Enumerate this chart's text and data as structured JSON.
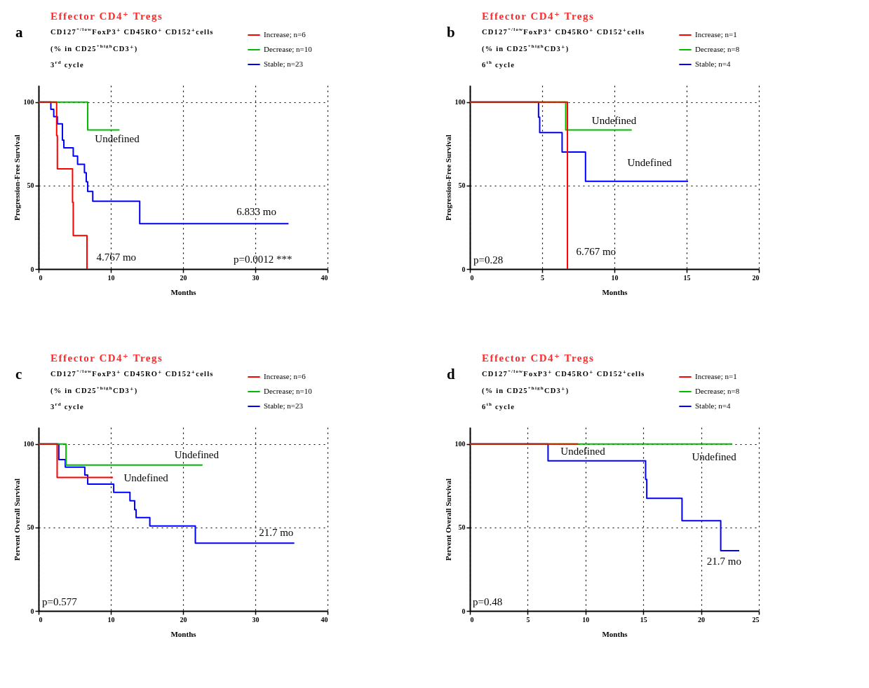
{
  "chart_data": [
    {
      "type": "step",
      "title": "Effector CD4⁺ Tregs",
      "subtitle": "CD127$^{+/low}$FoxP3⁺ CD45RO⁺ CD152⁺cells\n(% in CD25$^{+high}$CD3⁺)\n3$^{rd}$ cycle",
      "xlabel": "Months",
      "ylabel": "Progression-Free Survival",
      "xlim": [
        0,
        40
      ],
      "xticks": [
        0,
        10,
        20,
        30,
        40
      ],
      "ylim": [
        0,
        110
      ],
      "yticks": [
        0,
        50,
        100
      ],
      "grid": true,
      "legend": "top right",
      "series": [
        {
          "name": "Increase; n=6",
          "color": "#ff0000",
          "x": [
            0,
            2.5,
            2.6,
            4.7,
            4.8,
            6.7
          ],
          "values": [
            100,
            80,
            60,
            40,
            20,
            0
          ]
        },
        {
          "name": "Decrease; n=10",
          "color": "#00bb00",
          "x": [
            0,
            6.8,
            11.2
          ],
          "values": [
            100,
            83.3,
            83.3
          ]
        },
        {
          "name": "Stable; n=23",
          "color": "#0000ff",
          "x": [
            0,
            1.7,
            2.1,
            2.6,
            3.3,
            3.5,
            4.8,
            5.4,
            6.35,
            6.6,
            6.8,
            7.5,
            14.0,
            34.6
          ],
          "values": [
            100,
            95.7,
            91.3,
            87,
            77.3,
            72.6,
            67.7,
            62.8,
            57.7,
            52.3,
            46.5,
            40.6,
            27.2,
            27.2
          ]
        }
      ],
      "annotations": [
        "a",
        "Undefined",
        "6.833 mo",
        "4.767 mo",
        "p=0.0012 ***"
      ]
    },
    {
      "type": "step",
      "title": "Effector CD4⁺ Tregs",
      "subtitle": "CD127$^{+/low}$FoxP3⁺ CD45RO⁺ CD152⁺cells\n(% in CD25$^{+high}$CD3⁺)\n6$^{th}$ cycle",
      "xlabel": "Months",
      "ylabel": "Progression-Free Survival",
      "xlim": [
        0,
        20
      ],
      "xticks": [
        0,
        5,
        10,
        15,
        20
      ],
      "ylim": [
        0,
        110
      ],
      "yticks": [
        0,
        50,
        100
      ],
      "grid": true,
      "legend": "top right",
      "series": [
        {
          "name": "Increase; n=1",
          "color": "#ff0000",
          "x": [
            0,
            6.75
          ],
          "values": [
            100,
            0
          ]
        },
        {
          "name": "Decrease; n=8",
          "color": "#00bb00",
          "x": [
            0,
            6.63,
            11.2
          ],
          "values": [
            100,
            83.3,
            83.3
          ]
        },
        {
          "name": "Stable; n=4",
          "color": "#0000ff",
          "x": [
            0,
            4.75,
            4.83,
            6.38,
            8.0,
            15.1
          ],
          "values": [
            100,
            91,
            81.8,
            70.1,
            52.6,
            52.6
          ]
        }
      ],
      "annotations": [
        "b",
        "Undefined",
        "Undefined",
        "6.767 mo",
        "p=0.28"
      ]
    },
    {
      "type": "step",
      "title": "Effector CD4⁺ Tregs",
      "subtitle": "CD127$^{+/low}$FoxP3⁺ CD45RO⁺ CD152⁺cells\n(% in CD25$^{+high}$CD3⁺)\n3$^{rd}$ cycle",
      "xlabel": "Months",
      "ylabel": "Pervent Overall Survival",
      "xlim": [
        0,
        40
      ],
      "xticks": [
        0,
        10,
        20,
        30,
        40
      ],
      "ylim": [
        0,
        110
      ],
      "yticks": [
        0,
        50,
        100
      ],
      "grid": true,
      "legend": "top right",
      "series": [
        {
          "name": "Increase; n=6",
          "color": "#ff0000",
          "x": [
            0,
            2.57,
            10.3
          ],
          "values": [
            100,
            80,
            80
          ]
        },
        {
          "name": "Decrease; n=10",
          "color": "#00bb00",
          "x": [
            0,
            3.8,
            22.7
          ],
          "values": [
            100,
            87.4,
            87.4
          ]
        },
        {
          "name": "Stable; n=23",
          "color": "#0000ff",
          "x": [
            0,
            2.8,
            3.7,
            6.4,
            6.8,
            10.4,
            12.65,
            13.3,
            13.5,
            15.4,
            21.7,
            35.4
          ],
          "values": [
            100,
            90.7,
            86.2,
            81.4,
            76,
            71.1,
            66,
            60.7,
            55.9,
            50.9,
            40.6,
            40.6
          ]
        }
      ],
      "annotations": [
        "c",
        "Undefined",
        "Undefined",
        "21.7 mo",
        "p=0.577"
      ]
    },
    {
      "type": "step",
      "title": "Effector CD4⁺ Tregs",
      "subtitle": "CD127$^{+/low}$FoxP3⁺ CD45RO⁺ CD152⁺cells\n(% in CD25$^{+high}$CD3⁺)\n6$^{th}$ cycle",
      "xlabel": "Months",
      "ylabel": "Pervent Overall Survival",
      "xlim": [
        0,
        25
      ],
      "xticks": [
        0,
        5,
        10,
        15,
        20,
        25
      ],
      "ylim": [
        0,
        110
      ],
      "yticks": [
        0,
        50,
        100
      ],
      "grid": true,
      "legend": "top right",
      "series": [
        {
          "name": "Increase; n=1",
          "color": "#ff0000",
          "x": [
            0,
            9.36
          ],
          "values": [
            100,
            100
          ]
        },
        {
          "name": "Decrease; n=8",
          "color": "#00bb00",
          "x": [
            0,
            22.7
          ],
          "values": [
            100,
            100
          ]
        },
        {
          "name": "Stable; n=4",
          "color": "#0000ff",
          "x": [
            0,
            6.76,
            15.2,
            15.3,
            18.35,
            21.7,
            23.3
          ],
          "values": [
            100,
            90,
            78.8,
            67.5,
            54.1,
            36.1,
            36.1
          ]
        }
      ],
      "annotations": [
        "d",
        "Undefined",
        "Undefined",
        "21.7 mo",
        "p=0.48"
      ]
    }
  ]
}
